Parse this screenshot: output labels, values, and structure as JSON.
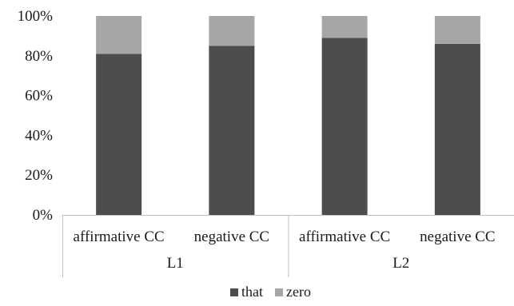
{
  "chart_data": {
    "type": "bar",
    "stacked": true,
    "percent_stacked": true,
    "categories": [
      "affirmative CC",
      "negative CC",
      "affirmative CC",
      "negative CC"
    ],
    "groups": [
      {
        "label": "L1",
        "categories": [
          "affirmative CC",
          "negative CC"
        ]
      },
      {
        "label": "L2",
        "categories": [
          "affirmative CC",
          "negative CC"
        ]
      }
    ],
    "series": [
      {
        "name": "that",
        "values": [
          81,
          85,
          89,
          86
        ],
        "color": "#4d4d4d"
      },
      {
        "name": "zero",
        "values": [
          19,
          15,
          11,
          14
        ],
        "color": "#a6a6a6"
      }
    ],
    "y_ticks": [
      "0%",
      "20%",
      "40%",
      "60%",
      "80%",
      "100%"
    ],
    "ylim": [
      0,
      100
    ],
    "grid": false,
    "legend_position": "bottom-center",
    "title": "",
    "xlabel": "",
    "ylabel": ""
  }
}
